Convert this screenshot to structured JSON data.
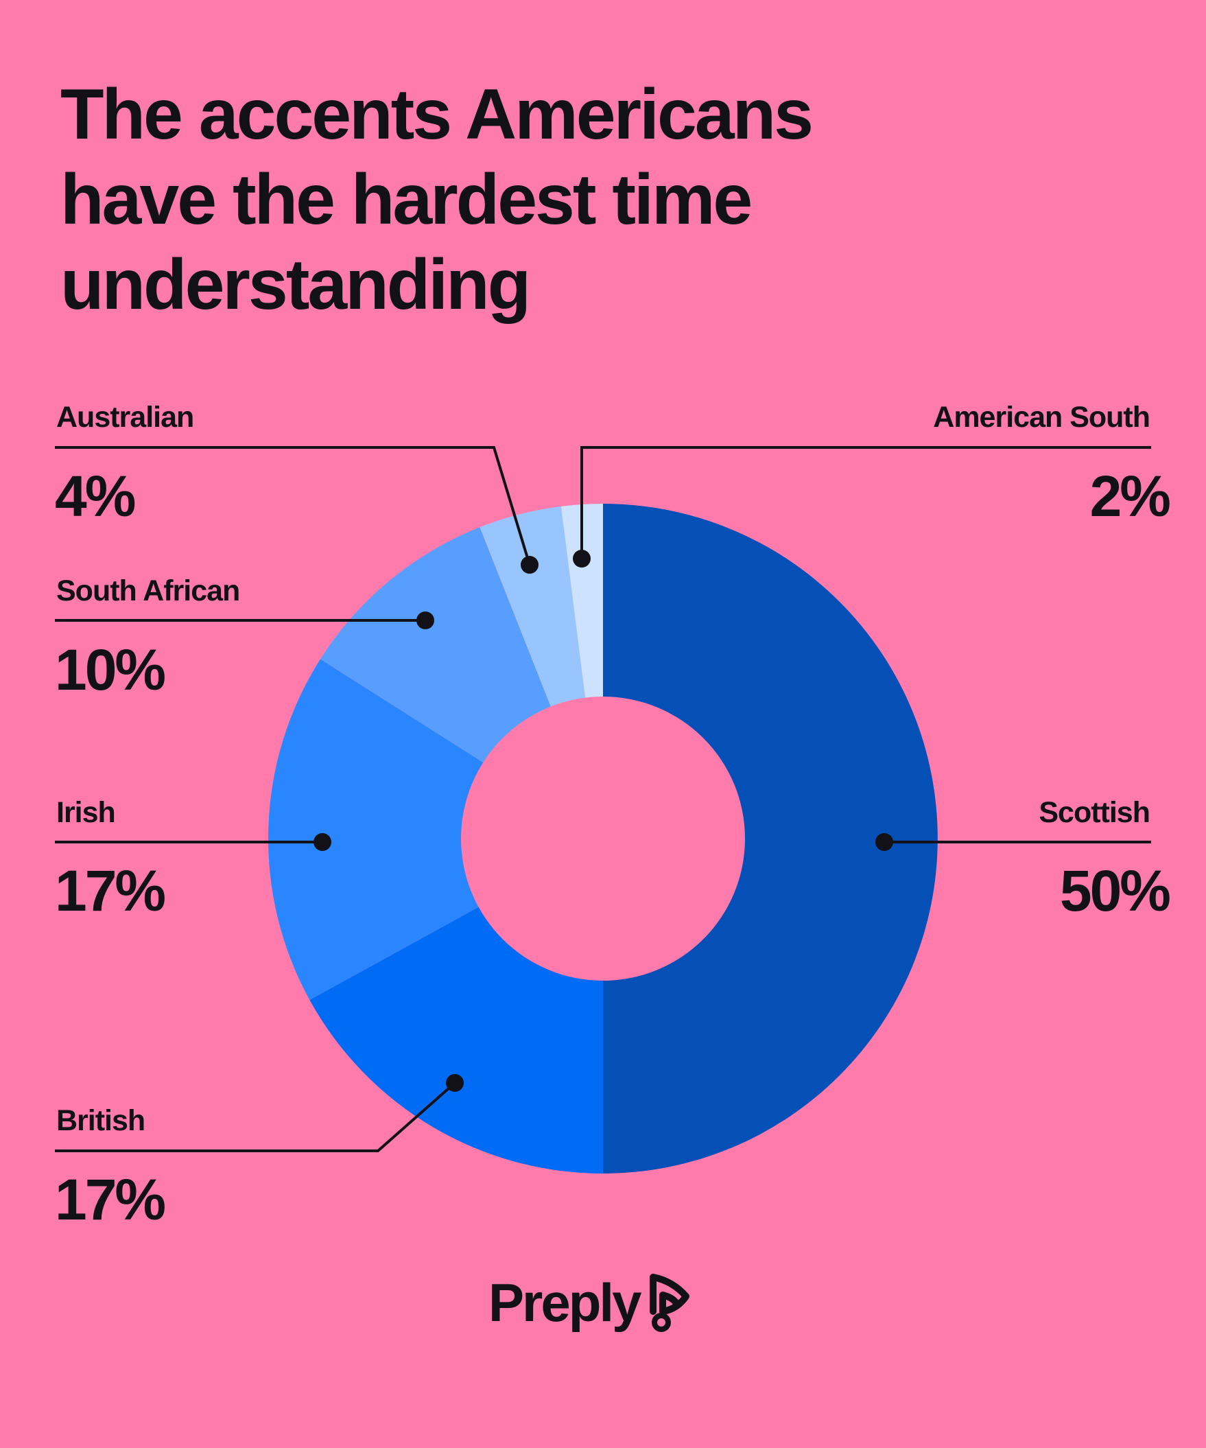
{
  "title_lines": [
    "The accents Americans",
    "have the hardest time",
    "understanding"
  ],
  "brand": {
    "name": "Preply",
    "icon": "preply-logo-icon"
  },
  "chart_data": {
    "type": "pie",
    "donut": true,
    "slices": [
      {
        "label": "Scottish",
        "value": 50,
        "value_label": "50%",
        "color": "#0550B6"
      },
      {
        "label": "British",
        "value": 17,
        "value_label": "17%",
        "color": "#006CF5"
      },
      {
        "label": "Irish",
        "value": 17,
        "value_label": "17%",
        "color": "#2A86FF"
      },
      {
        "label": "South African",
        "value": 10,
        "value_label": "10%",
        "color": "#579EFF"
      },
      {
        "label": "Australian",
        "value": 4,
        "value_label": "4%",
        "color": "#99C5FF"
      },
      {
        "label": "American South",
        "value": 2,
        "value_label": "2%",
        "color": "#CCE2FF"
      }
    ]
  }
}
